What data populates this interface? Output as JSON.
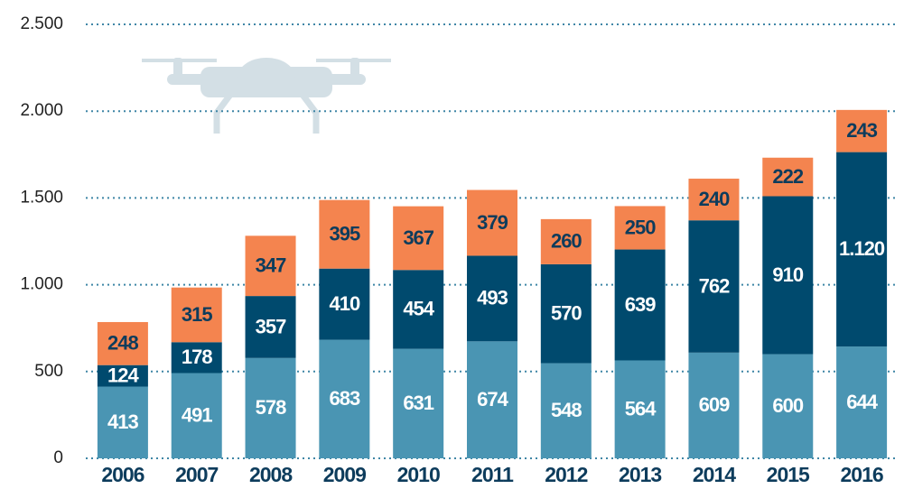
{
  "chart_data": {
    "type": "stacked_bar",
    "categories": [
      "2006",
      "2007",
      "2008",
      "2009",
      "2010",
      "2011",
      "2012",
      "2013",
      "2014",
      "2015",
      "2016"
    ],
    "series": [
      {
        "color": "#4a95b3",
        "values": [
          413,
          491,
          578,
          683,
          631,
          674,
          548,
          564,
          609,
          600,
          644
        ]
      },
      {
        "color": "#004a6e",
        "values": [
          124,
          178,
          357,
          410,
          454,
          493,
          570,
          639,
          762,
          910,
          1120
        ],
        "value_labels": [
          "124",
          "178",
          "357",
          "410",
          "454",
          "493",
          "570",
          "639",
          "762",
          "910",
          "1.120"
        ]
      },
      {
        "color": "#f4844f",
        "values": [
          248,
          315,
          347,
          395,
          367,
          379,
          260,
          250,
          240,
          222,
          243
        ]
      }
    ],
    "ylim": [
      0,
      2500
    ],
    "yticks": [
      0,
      500,
      {
        "value": 1000,
        "label": "1.000"
      },
      {
        "value": 1500,
        "label": "1.500"
      },
      {
        "value": 2000,
        "label": "2.000"
      },
      {
        "value": 2500,
        "label": "2.500"
      }
    ],
    "grid": true
  }
}
